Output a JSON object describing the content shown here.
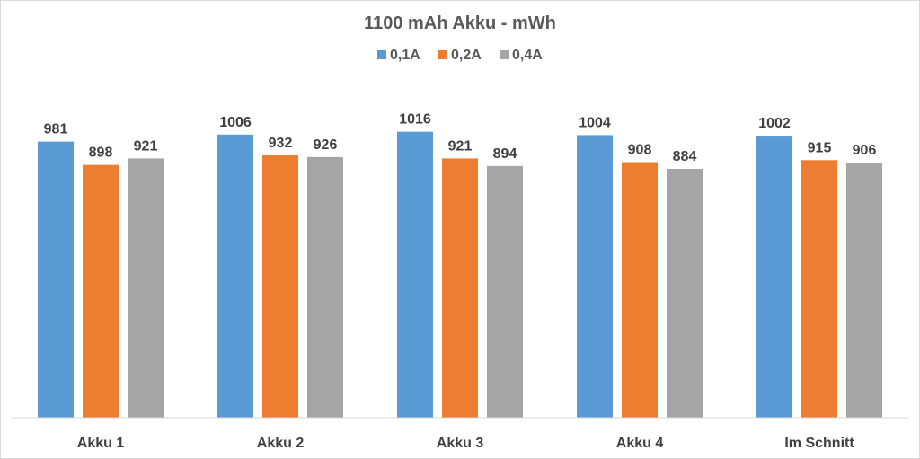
{
  "chart_data": {
    "type": "bar",
    "title": "1100 mAh Akku - mWh",
    "xlabel": "",
    "ylabel": "",
    "categories": [
      "Akku 1",
      "Akku 2",
      "Akku 3",
      "Akku 4",
      "Im Schnitt"
    ],
    "series": [
      {
        "name": "0,1A",
        "color": "#5b9bd5",
        "values": [
          981,
          1006,
          1016,
          1004,
          1002
        ]
      },
      {
        "name": "0,2A",
        "color": "#ed7d31",
        "values": [
          898,
          932,
          921,
          908,
          915
        ]
      },
      {
        "name": "0,4A",
        "color": "#a5a5a5",
        "values": [
          921,
          926,
          894,
          884,
          906
        ]
      }
    ],
    "ylim": [
      0,
      1200
    ],
    "grid": false,
    "legend": "top-center",
    "data_labels": true
  }
}
